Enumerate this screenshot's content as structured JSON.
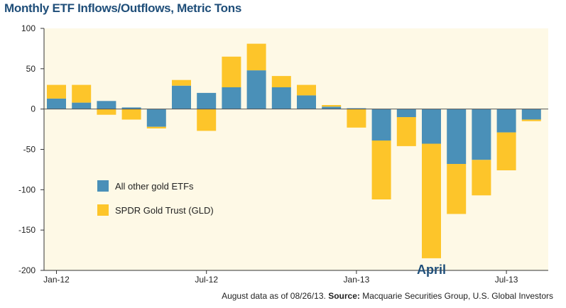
{
  "chart_data": {
    "type": "bar",
    "stacked": true,
    "title": "Monthly ETF Inflows/Outflows, Metric Tons",
    "xlabel": "",
    "ylabel": "",
    "ylim": [
      -200,
      100
    ],
    "yticks": [
      100,
      50,
      0,
      -50,
      -100,
      -150,
      -200
    ],
    "categories": [
      "Jan-12",
      "Feb-12",
      "Mar-12",
      "Apr-12",
      "May-12",
      "Jun-12",
      "Jul-12",
      "Aug-12",
      "Sep-12",
      "Oct-12",
      "Nov-12",
      "Dec-12",
      "Jan-13",
      "Feb-13",
      "Mar-13",
      "Apr-13",
      "May-13",
      "Jun-13",
      "Jul-13",
      "Aug-13"
    ],
    "xtick_labels": [
      {
        "label": "Jan-12",
        "index": 0
      },
      {
        "label": "Jul-12",
        "index": 6
      },
      {
        "label": "Jan-13",
        "index": 12
      },
      {
        "label": "Jul-13",
        "index": 18
      }
    ],
    "series": [
      {
        "name": "All other gold ETFs",
        "color": "#4a90b8",
        "values": [
          13,
          8,
          10,
          2,
          -22,
          29,
          20,
          27,
          48,
          27,
          17,
          3,
          1,
          -39,
          -10,
          -43,
          -68,
          -63,
          -29,
          -13
        ]
      },
      {
        "name": "SPDR Gold Trust (GLD)",
        "color": "#fdc52a",
        "values": [
          17,
          22,
          -7,
          -13,
          -2,
          7,
          -27,
          38,
          33,
          14,
          13,
          2,
          -23,
          -73,
          -36,
          -142,
          -62,
          -44,
          -47,
          -2
        ]
      }
    ],
    "annotations": [
      {
        "text": "April",
        "index": 15
      }
    ],
    "legend_position": "center-left",
    "grid": false
  },
  "footnote": {
    "prefix": "August data as of 08/26/13.",
    "source_label": "Source:",
    "source_text": "Macquarie Securities Group, U.S. Global Investors"
  },
  "colors": {
    "title": "#1f4e79",
    "plot_background": "#fef9e6",
    "annotation": "#1f4e79"
  }
}
